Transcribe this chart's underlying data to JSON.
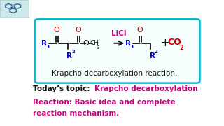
{
  "bg_color": "#ffffff",
  "box_edge_color": "#00bcd4",
  "box_bg_color": "#f5fdfd",
  "reaction_label": "Krapcho decarboxylation reaction.",
  "reaction_label_color": "#111111",
  "reaction_label_fs": 7.5,
  "licl_label": "LiCl",
  "licl_color": "#cc007f",
  "co2_color": "#cc0000",
  "r_color": "#0000cc",
  "o_color": "#cc0000",
  "bond_color": "#111111",
  "plus_color": "#111111",
  "arrow_color": "#111111",
  "today_black": "Today’s topic: ",
  "today_pink_lines": [
    "Krapcho decarboxylation",
    "Reaction: Basic idea and complete",
    "reaction mechanism."
  ],
  "today_black_color": "#111111",
  "today_pink_color": "#cc007f",
  "today_fs": 7.5
}
